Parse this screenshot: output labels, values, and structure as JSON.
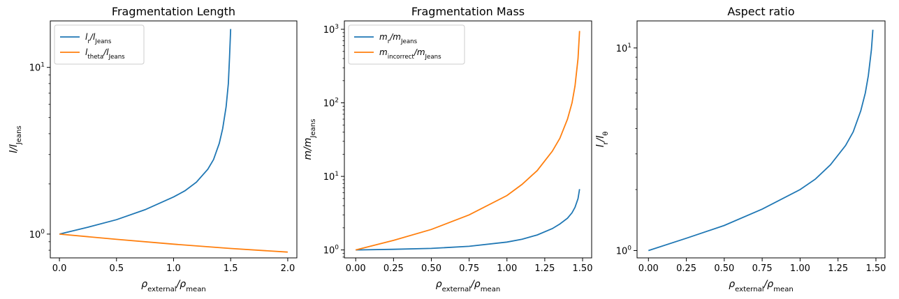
{
  "chart_data": [
    {
      "type": "line",
      "title": "Fragmentation Length",
      "xlabel": "ρexternal/ρmean",
      "ylabel": "l/lJeans",
      "xlim": [
        -0.08,
        2.08
      ],
      "ylim": [
        0.72,
        19.0
      ],
      "yscale": "log",
      "grid": false,
      "legend_position": "top-left",
      "x_ticks": [
        0.0,
        0.5,
        1.0,
        1.5,
        2.0
      ],
      "x_tick_labels": [
        "0.0",
        "0.5",
        "1.0",
        "1.5",
        "2.0"
      ],
      "y_major_ticks": [
        1,
        10
      ],
      "y_tick_labels": [
        "10^0",
        "10^1"
      ],
      "series": [
        {
          "name": "lr/lJeans",
          "color": "#1f77b4",
          "x": [
            0.0,
            0.25,
            0.5,
            0.75,
            1.0,
            1.1,
            1.2,
            1.3,
            1.35,
            1.4,
            1.43,
            1.46,
            1.48,
            1.49,
            1.5
          ],
          "y": [
            1.0,
            1.1,
            1.22,
            1.4,
            1.67,
            1.82,
            2.05,
            2.45,
            2.8,
            3.5,
            4.3,
            5.8,
            8.0,
            11.5,
            17.0
          ]
        },
        {
          "name": "ltheta/lJeans",
          "color": "#ff7f0e",
          "x": [
            0.0,
            0.5,
            1.0,
            1.5,
            2.0
          ],
          "y": [
            1.0,
            0.93,
            0.87,
            0.82,
            0.78
          ]
        }
      ]
    },
    {
      "type": "line",
      "title": "Fragmentation Mass",
      "xlabel": "ρexternal/ρmean",
      "ylabel": "m/mJeans",
      "xlim": [
        -0.075,
        1.56
      ],
      "ylim": [
        0.78,
        1300
      ],
      "yscale": "log",
      "grid": false,
      "legend_position": "top-left",
      "x_ticks": [
        0.0,
        0.25,
        0.5,
        0.75,
        1.0,
        1.25,
        1.5
      ],
      "x_tick_labels": [
        "0.00",
        "0.25",
        "0.50",
        "0.75",
        "1.00",
        "1.25",
        "1.50"
      ],
      "y_major_ticks": [
        1,
        10,
        100,
        1000
      ],
      "y_tick_labels": [
        "10^0",
        "10^1",
        "10^2",
        "10^3"
      ],
      "series": [
        {
          "name": "mr/mJeans",
          "color": "#1f77b4",
          "x": [
            0.0,
            0.25,
            0.5,
            0.75,
            1.0,
            1.1,
            1.2,
            1.3,
            1.35,
            1.4,
            1.43,
            1.45,
            1.47,
            1.48
          ],
          "y": [
            1.0,
            1.02,
            1.05,
            1.12,
            1.28,
            1.4,
            1.6,
            1.95,
            2.25,
            2.7,
            3.2,
            3.8,
            5.0,
            6.7
          ]
        },
        {
          "name": "mincorrect/mJeans",
          "color": "#ff7f0e",
          "x": [
            0.0,
            0.25,
            0.5,
            0.75,
            1.0,
            1.1,
            1.2,
            1.3,
            1.35,
            1.4,
            1.43,
            1.45,
            1.47,
            1.48
          ],
          "y": [
            1.0,
            1.35,
            1.9,
            3.0,
            5.5,
            7.8,
            12.0,
            22.0,
            33.0,
            60.0,
            100.0,
            170.0,
            400.0,
            950.0
          ]
        }
      ]
    },
    {
      "type": "line",
      "title": "Aspect ratio",
      "xlabel": "ρexternal/ρmean",
      "ylabel": "lr/lθ",
      "xlim": [
        -0.075,
        1.56
      ],
      "ylim": [
        0.92,
        13.6
      ],
      "yscale": "log",
      "grid": false,
      "legend_position": "none",
      "x_ticks": [
        0.0,
        0.25,
        0.5,
        0.75,
        1.0,
        1.25,
        1.5
      ],
      "x_tick_labels": [
        "0.00",
        "0.25",
        "0.50",
        "0.75",
        "1.00",
        "1.25",
        "1.50"
      ],
      "y_major_ticks": [
        1,
        10
      ],
      "y_tick_labels": [
        "10^0",
        "10^1"
      ],
      "series": [
        {
          "name": "",
          "color": "#1f77b4",
          "x": [
            0.0,
            0.25,
            0.5,
            0.75,
            1.0,
            1.1,
            1.2,
            1.3,
            1.35,
            1.4,
            1.43,
            1.45,
            1.47,
            1.48
          ],
          "y": [
            1.0,
            1.15,
            1.33,
            1.6,
            2.0,
            2.25,
            2.65,
            3.3,
            3.85,
            4.9,
            6.0,
            7.3,
            9.8,
            12.3
          ]
        }
      ]
    }
  ]
}
